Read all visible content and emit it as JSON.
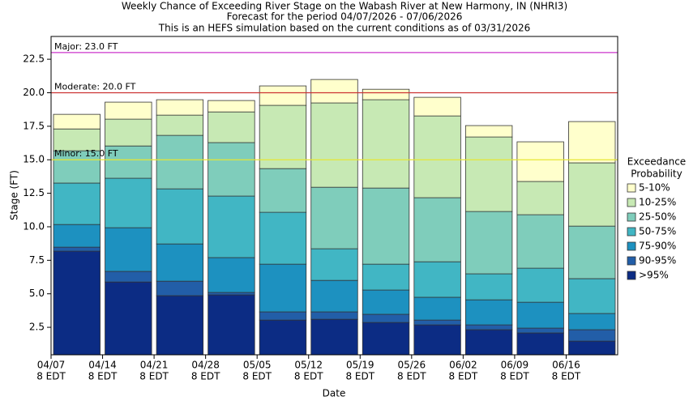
{
  "chart_data": {
    "type": "stacked_bar",
    "title": "Weekly Chance of Exceeding River Stage on the Wabash River at New Harmony, IN (NHRI3)",
    "subtitle": "Forecast for the period 04/07/2026 - 07/06/2026",
    "subtitle2": "This is an HEFS simulation based on the current conditions as of 03/31/2026",
    "x_label": "Date",
    "y_label": "Stage (FT)",
    "categories": [
      "04/07",
      "04/14",
      "04/21",
      "04/28",
      "05/05",
      "05/12",
      "05/19",
      "05/26",
      "06/02",
      "06/09",
      "06/16"
    ],
    "tick_sublabel": "8 EDT",
    "legend_title": [
      "Exceedance",
      "Probability"
    ],
    "series": [
      {
        "name": ">95%",
        "color": "#0c2c84",
        "values": [
          7.73,
          5.43,
          4.41,
          4.47,
          2.59,
          2.65,
          2.41,
          2.23,
          1.87,
          1.63,
          1.02
        ]
      },
      {
        "name": "90-95%",
        "color": "#225ea8",
        "values": [
          0.3,
          0.79,
          1.08,
          0.18,
          0.61,
          0.55,
          0.61,
          0.36,
          0.36,
          0.36,
          0.85
        ]
      },
      {
        "name": "75-90%",
        "color": "#1d91c0",
        "values": [
          1.69,
          3.26,
          2.78,
          2.6,
          3.56,
          2.35,
          1.81,
          1.7,
          1.87,
          1.93,
          1.21
        ]
      },
      {
        "name": "50-75%",
        "color": "#41b6c4",
        "values": [
          3.09,
          3.69,
          4.11,
          4.59,
          3.87,
          2.36,
          1.93,
          2.65,
          1.94,
          2.54,
          2.6
        ]
      },
      {
        "name": "25-50%",
        "color": "#7fcdbb",
        "values": [
          2.41,
          2.41,
          3.99,
          3.99,
          3.26,
          4.59,
          5.68,
          4.78,
          4.65,
          3.99,
          3.92
        ]
      },
      {
        "name": "10-25%",
        "color": "#c7e9b4",
        "values": [
          1.63,
          2.0,
          1.51,
          2.29,
          4.72,
          6.29,
          6.59,
          6.1,
          5.56,
          2.48,
          4.72
        ]
      },
      {
        "name": "5-10%",
        "color": "#ffffcc",
        "values": [
          1.09,
          1.27,
          1.15,
          0.85,
          1.45,
          1.75,
          0.78,
          1.39,
          0.85,
          2.96,
          3.08
        ]
      }
    ],
    "thresholds": [
      {
        "label": "Major: 23.0 FT",
        "value": 23.0,
        "color": "#cc33cc"
      },
      {
        "label": "Moderate: 20.0 FT",
        "value": 20.0,
        "color": "#cc3333"
      },
      {
        "label": "Minor: 15.0 FT",
        "value": 15.0,
        "color": "#e6e633"
      }
    ],
    "ylim": [
      0.45,
      24.2
    ],
    "yticks": [
      2.5,
      {
        "value": 5,
        "label": "5.0"
      },
      7.5,
      {
        "value": 10,
        "label": "10.0"
      },
      12.5,
      {
        "value": 15,
        "label": "15.0"
      },
      17.5,
      {
        "value": 20,
        "label": "20.0"
      },
      22.5
    ],
    "grid": false
  }
}
